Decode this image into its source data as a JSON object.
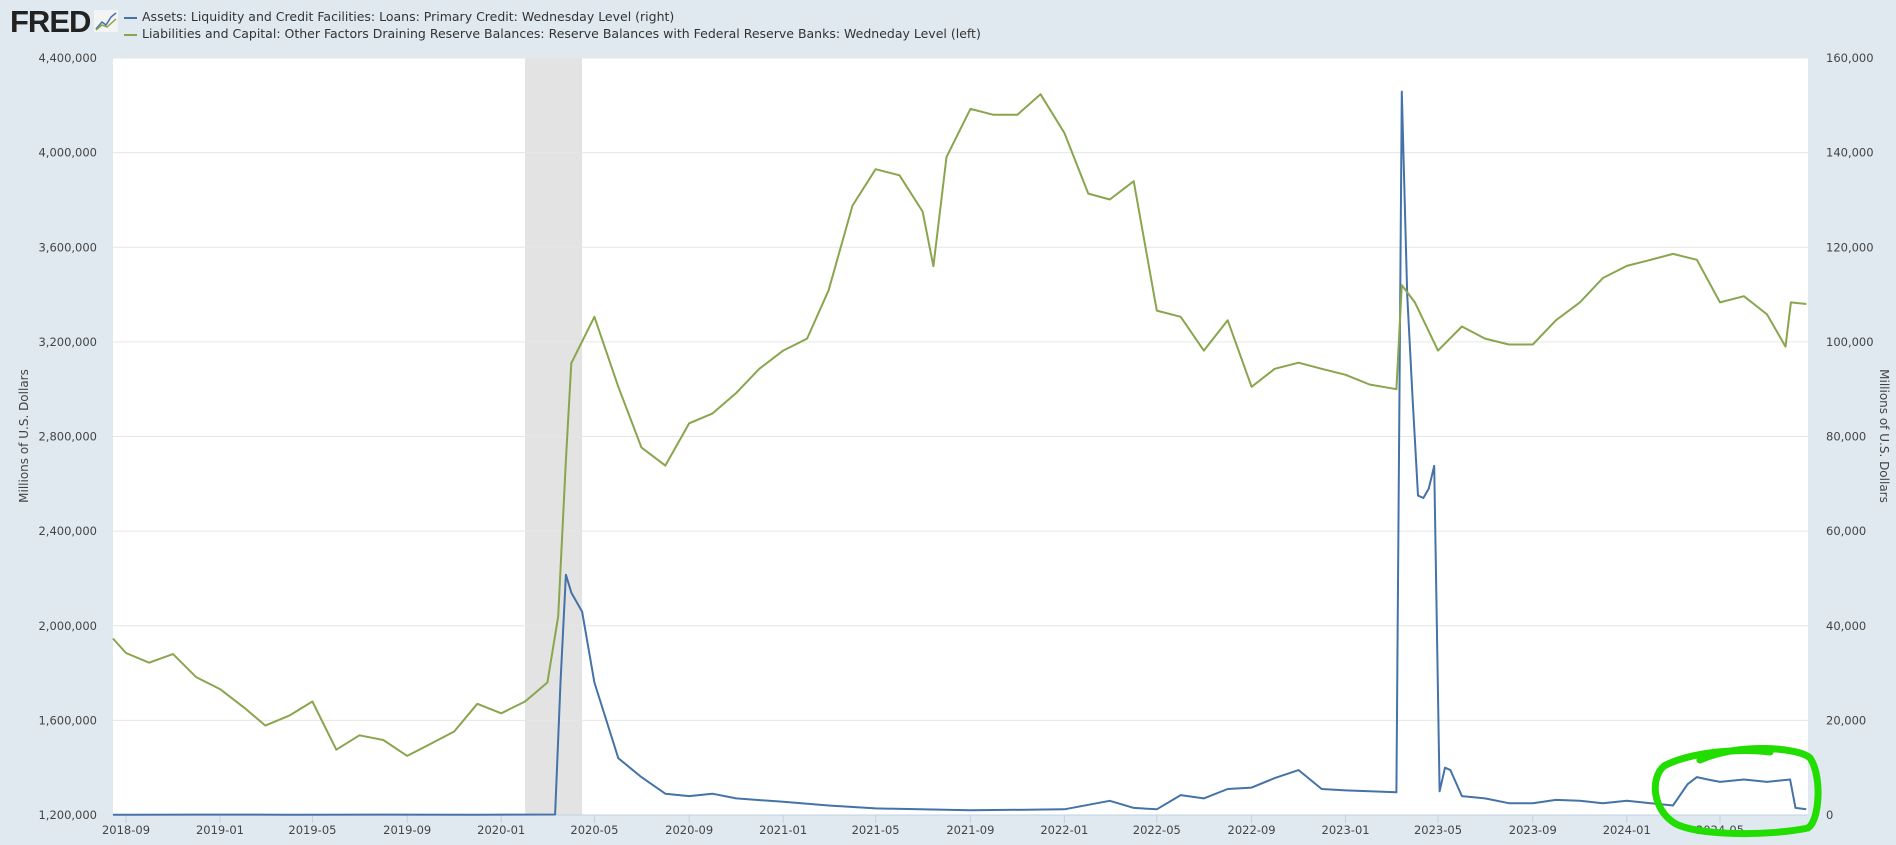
{
  "header": {
    "logo": "FRED",
    "logo_icon": "line-chart-icon"
  },
  "chart_data": {
    "type": "line",
    "title": "",
    "legend": [
      "Assets: Liquidity and Credit Facilities: Loans: Primary Credit: Wednesday Level (right)",
      "Liabilities and Capital: Other Factors Draining Reserve Balances: Reserve Balances with Federal Reserve Banks: Wedneday Level (left)"
    ],
    "legend_placement": "top-left",
    "grid": true,
    "xlabel": "",
    "ylabel_left": "Millions of U.S. Dollars",
    "ylabel_right": "Millions of U.S. Dollars",
    "xlim": [
      "2018-08-15",
      "2024-08-22"
    ],
    "ylim_left": [
      1200000,
      4400000
    ],
    "ylim_right": [
      0,
      160000
    ],
    "x_ticks": [
      "2018-09",
      "2019-01",
      "2019-05",
      "2019-09",
      "2020-01",
      "2020-05",
      "2020-09",
      "2021-01",
      "2021-05",
      "2021-09",
      "2022-01",
      "2022-05",
      "2022-09",
      "2023-01",
      "2023-05",
      "2023-09",
      "2024-01",
      "2024-05"
    ],
    "y_ticks_left": [
      "1,200,000",
      "1,600,000",
      "2,000,000",
      "2,400,000",
      "2,800,000",
      "3,200,000",
      "3,600,000",
      "4,000,000",
      "4,400,000"
    ],
    "y_ticks_right": [
      "0",
      "20,000",
      "40,000",
      "60,000",
      "80,000",
      "100,000",
      "120,000",
      "140,000",
      "160,000"
    ],
    "recession": [
      "2020-02-01",
      "2020-04-15"
    ],
    "series": [
      {
        "name": "Assets: Liquidity and Credit Facilities: Loans: Primary Credit: Wednesday Level (right)",
        "axis": "right",
        "color": "#4572a7",
        "points": [
          [
            "2018-08-15",
            50
          ],
          [
            "2018-12-01",
            80
          ],
          [
            "2019-04-01",
            60
          ],
          [
            "2019-08-01",
            90
          ],
          [
            "2019-12-01",
            70
          ],
          [
            "2020-03-11",
            100
          ],
          [
            "2020-03-18",
            28000
          ],
          [
            "2020-03-25",
            50800
          ],
          [
            "2020-04-01",
            47000
          ],
          [
            "2020-04-15",
            43000
          ],
          [
            "2020-05-01",
            28000
          ],
          [
            "2020-06-01",
            12000
          ],
          [
            "2020-07-01",
            8000
          ],
          [
            "2020-08-01",
            4500
          ],
          [
            "2020-09-01",
            4000
          ],
          [
            "2020-10-01",
            4500
          ],
          [
            "2020-11-01",
            3500
          ],
          [
            "2021-01-01",
            2800
          ],
          [
            "2021-03-01",
            2000
          ],
          [
            "2021-05-01",
            1400
          ],
          [
            "2021-09-01",
            1000
          ],
          [
            "2022-01-01",
            1200
          ],
          [
            "2022-03-01",
            3000
          ],
          [
            "2022-04-01",
            1500
          ],
          [
            "2022-05-01",
            1200
          ],
          [
            "2022-06-01",
            4200
          ],
          [
            "2022-07-01",
            3500
          ],
          [
            "2022-08-01",
            5500
          ],
          [
            "2022-09-01",
            5800
          ],
          [
            "2022-10-01",
            7800
          ],
          [
            "2022-11-01",
            9500
          ],
          [
            "2022-12-01",
            5500
          ],
          [
            "2023-01-01",
            5200
          ],
          [
            "2023-02-01",
            5000
          ],
          [
            "2023-03-08",
            4800
          ],
          [
            "2023-03-15",
            152900
          ],
          [
            "2023-03-22",
            110000
          ],
          [
            "2023-03-29",
            88000
          ],
          [
            "2023-04-05",
            67500
          ],
          [
            "2023-04-12",
            67000
          ],
          [
            "2023-04-19",
            69000
          ],
          [
            "2023-04-26",
            73800
          ],
          [
            "2023-05-03",
            5000
          ],
          [
            "2023-05-10",
            10000
          ],
          [
            "2023-05-17",
            9500
          ],
          [
            "2023-06-01",
            4000
          ],
          [
            "2023-07-01",
            3500
          ],
          [
            "2023-08-01",
            2500
          ],
          [
            "2023-09-01",
            2500
          ],
          [
            "2023-10-01",
            3200
          ],
          [
            "2023-11-01",
            3000
          ],
          [
            "2023-12-01",
            2500
          ],
          [
            "2024-01-01",
            3000
          ],
          [
            "2024-02-01",
            2500
          ],
          [
            "2024-03-01",
            2000
          ],
          [
            "2024-03-20",
            6500
          ],
          [
            "2024-04-01",
            8000
          ],
          [
            "2024-04-15",
            7500
          ],
          [
            "2024-05-01",
            7000
          ],
          [
            "2024-06-01",
            7500
          ],
          [
            "2024-07-01",
            7000
          ],
          [
            "2024-07-31",
            7500
          ],
          [
            "2024-08-07",
            1500
          ],
          [
            "2024-08-21",
            1200
          ]
        ]
      },
      {
        "name": "Liabilities and Capital: Other Factors Draining Reserve Balances: Reserve Balances with Federal Reserve Banks: Wedneday Level (left)",
        "axis": "left",
        "color": "#89a54e",
        "points": [
          [
            "2018-08-15",
            1946000
          ],
          [
            "2018-09-01",
            1885000
          ],
          [
            "2018-10-01",
            1844000
          ],
          [
            "2018-11-01",
            1880000
          ],
          [
            "2018-12-01",
            1783000
          ],
          [
            "2019-01-01",
            1732000
          ],
          [
            "2019-02-01",
            1655000
          ],
          [
            "2019-03-01",
            1578000
          ],
          [
            "2019-04-01",
            1620000
          ],
          [
            "2019-05-01",
            1680000
          ],
          [
            "2019-06-01",
            1476000
          ],
          [
            "2019-07-01",
            1537000
          ],
          [
            "2019-08-01",
            1517000
          ],
          [
            "2019-09-01",
            1450000
          ],
          [
            "2019-10-01",
            1500000
          ],
          [
            "2019-11-01",
            1553000
          ],
          [
            "2019-12-01",
            1670000
          ],
          [
            "2020-01-01",
            1630000
          ],
          [
            "2020-02-01",
            1680000
          ],
          [
            "2020-03-01",
            1760000
          ],
          [
            "2020-03-15",
            2040000
          ],
          [
            "2020-03-25",
            2700000
          ],
          [
            "2020-04-01",
            3110000
          ],
          [
            "2020-05-01",
            3306000
          ],
          [
            "2020-06-01",
            3010000
          ],
          [
            "2020-07-01",
            2754000
          ],
          [
            "2020-08-01",
            2677000
          ],
          [
            "2020-09-01",
            2856000
          ],
          [
            "2020-10-01",
            2897000
          ],
          [
            "2020-11-01",
            2984000
          ],
          [
            "2020-12-01",
            3086000
          ],
          [
            "2021-01-01",
            3163000
          ],
          [
            "2021-02-01",
            3214000
          ],
          [
            "2021-03-01",
            3418000
          ],
          [
            "2021-04-01",
            3776000
          ],
          [
            "2021-05-01",
            3930000
          ],
          [
            "2021-06-01",
            3904000
          ],
          [
            "2021-07-01",
            3751000
          ],
          [
            "2021-07-15",
            3520000
          ],
          [
            "2021-08-01",
            3981000
          ],
          [
            "2021-09-01",
            4185000
          ],
          [
            "2021-10-01",
            4160000
          ],
          [
            "2021-11-01",
            4160000
          ],
          [
            "2021-12-01",
            4247000
          ],
          [
            "2022-01-01",
            4083000
          ],
          [
            "2022-02-01",
            3827000
          ],
          [
            "2022-03-01",
            3802000
          ],
          [
            "2022-04-01",
            3879000
          ],
          [
            "2022-05-01",
            3332000
          ],
          [
            "2022-06-01",
            3306000
          ],
          [
            "2022-07-01",
            3163000
          ],
          [
            "2022-08-01",
            3291000
          ],
          [
            "2022-09-01",
            3010000
          ],
          [
            "2022-10-01",
            3086000
          ],
          [
            "2022-11-01",
            3112000
          ],
          [
            "2022-12-01",
            3086000
          ],
          [
            "2023-01-01",
            3061000
          ],
          [
            "2023-02-01",
            3020000
          ],
          [
            "2023-03-08",
            3000000
          ],
          [
            "2023-03-15",
            3440000
          ],
          [
            "2023-04-01",
            3367000
          ],
          [
            "2023-05-01",
            3163000
          ],
          [
            "2023-06-01",
            3265000
          ],
          [
            "2023-07-01",
            3214000
          ],
          [
            "2023-08-01",
            3189000
          ],
          [
            "2023-09-01",
            3189000
          ],
          [
            "2023-10-01",
            3291000
          ],
          [
            "2023-11-01",
            3367000
          ],
          [
            "2023-12-01",
            3470000
          ],
          [
            "2024-01-01",
            3521000
          ],
          [
            "2024-02-01",
            3547000
          ],
          [
            "2024-03-01",
            3572000
          ],
          [
            "2024-04-01",
            3547000
          ],
          [
            "2024-05-01",
            3367000
          ],
          [
            "2024-06-01",
            3393000
          ],
          [
            "2024-07-01",
            3316000
          ],
          [
            "2024-07-25",
            3180000
          ],
          [
            "2024-08-01",
            3367000
          ],
          [
            "2024-08-21",
            3360000
          ]
        ]
      }
    ],
    "annotation": {
      "shape": "hand-drawn circle",
      "color": "#22dd00"
    }
  }
}
